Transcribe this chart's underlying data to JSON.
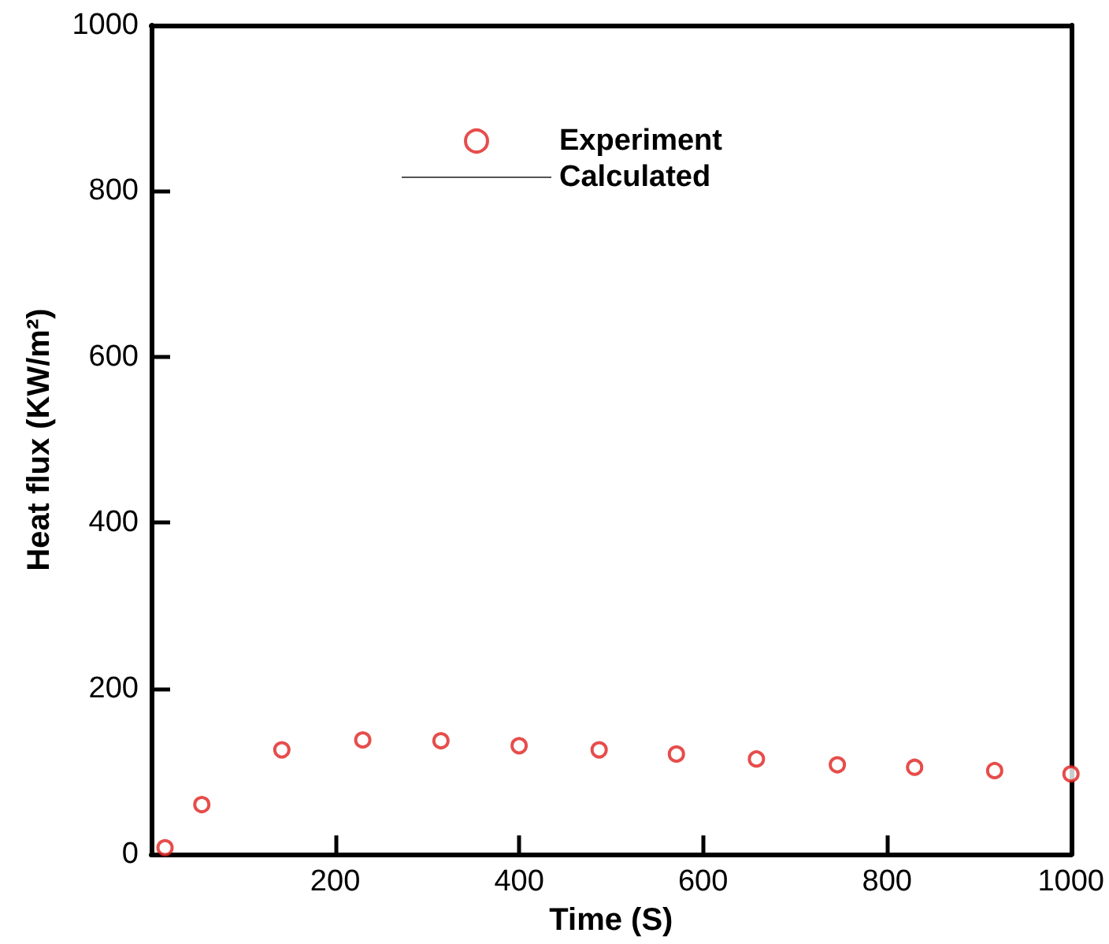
{
  "chart_data": {
    "type": "scatter",
    "xlabel": "Time (S)",
    "ylabel": "Heat flux (KW/m²)",
    "xlim": [
      0,
      1000
    ],
    "xticks": [
      200,
      400,
      600,
      800,
      1000
    ],
    "ylim": [
      0,
      1000
    ],
    "yticks": [
      0,
      200,
      400,
      600,
      800,
      1000
    ],
    "grid": false,
    "legend": "top",
    "marker": "circle",
    "series": [
      {
        "name": "Experiment",
        "color": "#e0201e",
        "x": [
          15,
          55,
          142,
          230,
          315,
          400,
          487,
          571,
          658,
          746,
          830,
          917,
          1000
        ],
        "values": [
          8,
          60,
          126,
          138,
          137,
          131,
          126,
          121,
          115,
          108,
          105,
          101,
          97
        ]
      },
      {
        "name": "Calculated",
        "type": "line",
        "color": "#555555",
        "line_style": "solid"
      }
    ]
  }
}
